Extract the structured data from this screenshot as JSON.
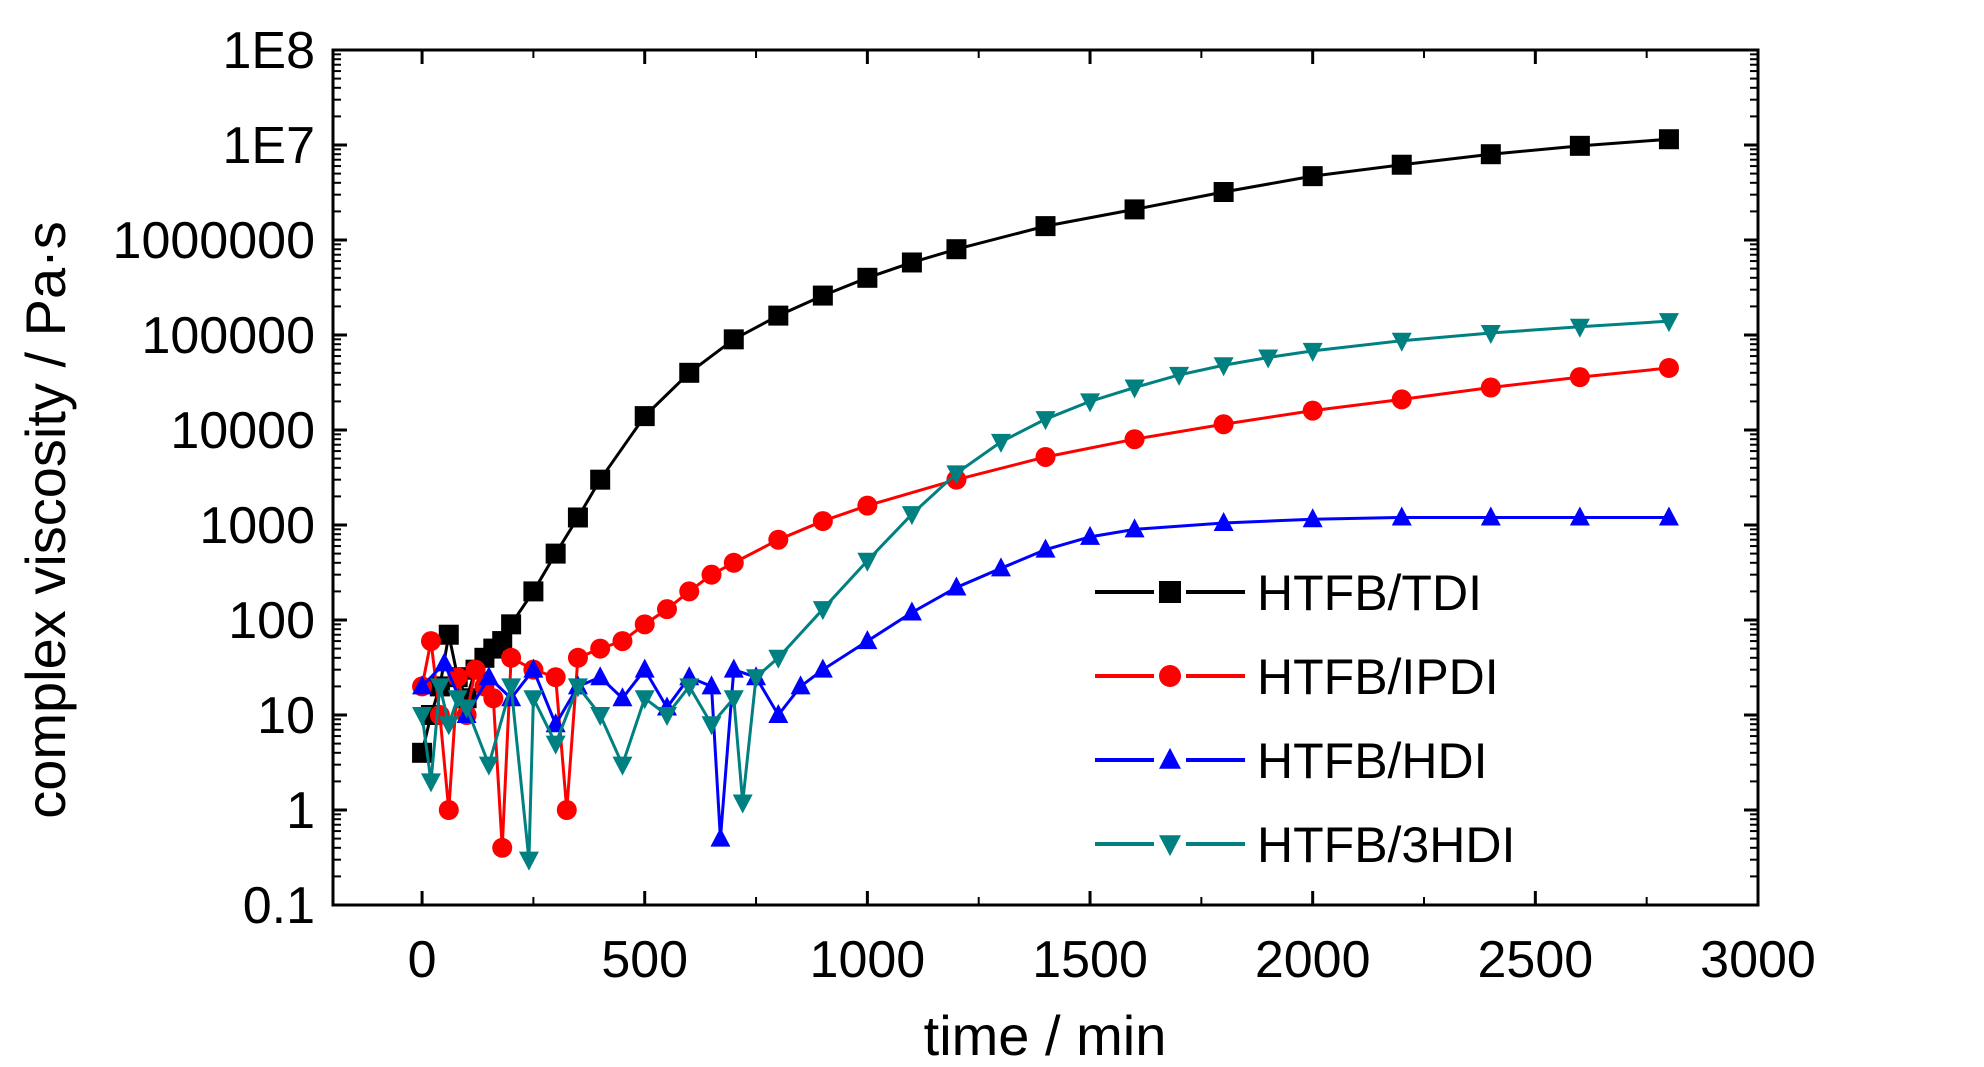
{
  "chart_data": {
    "type": "scatter",
    "title": "",
    "xlabel": "time / min",
    "ylabel": "complex viscosity / Pa·s",
    "xlim": [
      -200,
      3000
    ],
    "ylim": [
      0.1,
      100000000
    ],
    "yscale": "log",
    "xticks": [
      0,
      500,
      1000,
      1500,
      2000,
      2500,
      3000
    ],
    "xtick_labels": [
      "0",
      "500",
      "1000",
      "1500",
      "2000",
      "2500",
      "3000"
    ],
    "yticks": [
      0.1,
      1,
      10,
      100,
      1000,
      10000,
      100000,
      1000000,
      10000000,
      100000000
    ],
    "ytick_labels": [
      "0.1",
      "1",
      "10",
      "100",
      "1000",
      "10000",
      "100000",
      "1000000",
      "1E7",
      "1E8"
    ],
    "grid": false,
    "legend_position": "lower-right",
    "series": [
      {
        "name": "HTFB/TDI",
        "color": "#000000",
        "marker": "square",
        "x": [
          0,
          20,
          40,
          60,
          80,
          100,
          120,
          140,
          160,
          180,
          200,
          250,
          300,
          350,
          400,
          500,
          600,
          700,
          800,
          900,
          1000,
          1100,
          1200,
          1400,
          1600,
          1800,
          2000,
          2200,
          2400,
          2600,
          2800
        ],
        "y": [
          4,
          10,
          20,
          70,
          25,
          15,
          30,
          40,
          50,
          60,
          90,
          200,
          500,
          1200,
          3000,
          14000,
          40000,
          90000,
          160000,
          260000,
          400000,
          580000,
          800000,
          1400000,
          2100000,
          3200000,
          4700000,
          6200000,
          8000000,
          9800000,
          11500000
        ]
      },
      {
        "name": "HTFB/IPDI",
        "color": "#ff0000",
        "marker": "circle",
        "x": [
          0,
          20,
          40,
          60,
          80,
          100,
          120,
          140,
          160,
          180,
          200,
          250,
          300,
          325,
          350,
          400,
          450,
          500,
          550,
          600,
          650,
          700,
          800,
          900,
          1000,
          1200,
          1400,
          1600,
          1800,
          2000,
          2200,
          2400,
          2600,
          2800
        ],
        "y": [
          20,
          60,
          10,
          1,
          25,
          10,
          30,
          20,
          15,
          0.4,
          40,
          30,
          25,
          1,
          40,
          50,
          60,
          90,
          130,
          200,
          300,
          400,
          700,
          1100,
          1600,
          3000,
          5200,
          8000,
          11500,
          16000,
          21000,
          28000,
          36000,
          45000
        ]
      },
      {
        "name": "HTFB/HDI",
        "color": "#0000ff",
        "marker": "triangle-up",
        "x": [
          0,
          50,
          100,
          150,
          200,
          250,
          300,
          350,
          400,
          450,
          500,
          550,
          600,
          650,
          670,
          700,
          750,
          800,
          850,
          900,
          1000,
          1100,
          1200,
          1300,
          1400,
          1500,
          1600,
          1800,
          2000,
          2200,
          2400,
          2600,
          2800
        ],
        "y": [
          20,
          35,
          10,
          25,
          15,
          30,
          8,
          20,
          25,
          15,
          30,
          12,
          25,
          20,
          0.5,
          30,
          25,
          10,
          20,
          30,
          60,
          120,
          220,
          350,
          550,
          750,
          900,
          1050,
          1150,
          1200,
          1200,
          1200,
          1200
        ]
      },
      {
        "name": "HTFB/3HDI",
        "color": "#008080",
        "marker": "triangle-down",
        "x": [
          0,
          20,
          40,
          60,
          80,
          100,
          150,
          200,
          240,
          250,
          300,
          350,
          400,
          450,
          500,
          550,
          600,
          650,
          700,
          720,
          750,
          800,
          900,
          1000,
          1100,
          1200,
          1300,
          1400,
          1500,
          1600,
          1700,
          1800,
          1900,
          2000,
          2200,
          2400,
          2600,
          2800
        ],
        "y": [
          10,
          2,
          20,
          8,
          15,
          12,
          3,
          20,
          0.3,
          15,
          5,
          20,
          10,
          3,
          15,
          10,
          20,
          8,
          15,
          1.2,
          25,
          40,
          130,
          420,
          1300,
          3500,
          7500,
          13000,
          20000,
          28000,
          38000,
          48000,
          58000,
          68000,
          87000,
          105000,
          122000,
          140000
        ]
      }
    ]
  }
}
